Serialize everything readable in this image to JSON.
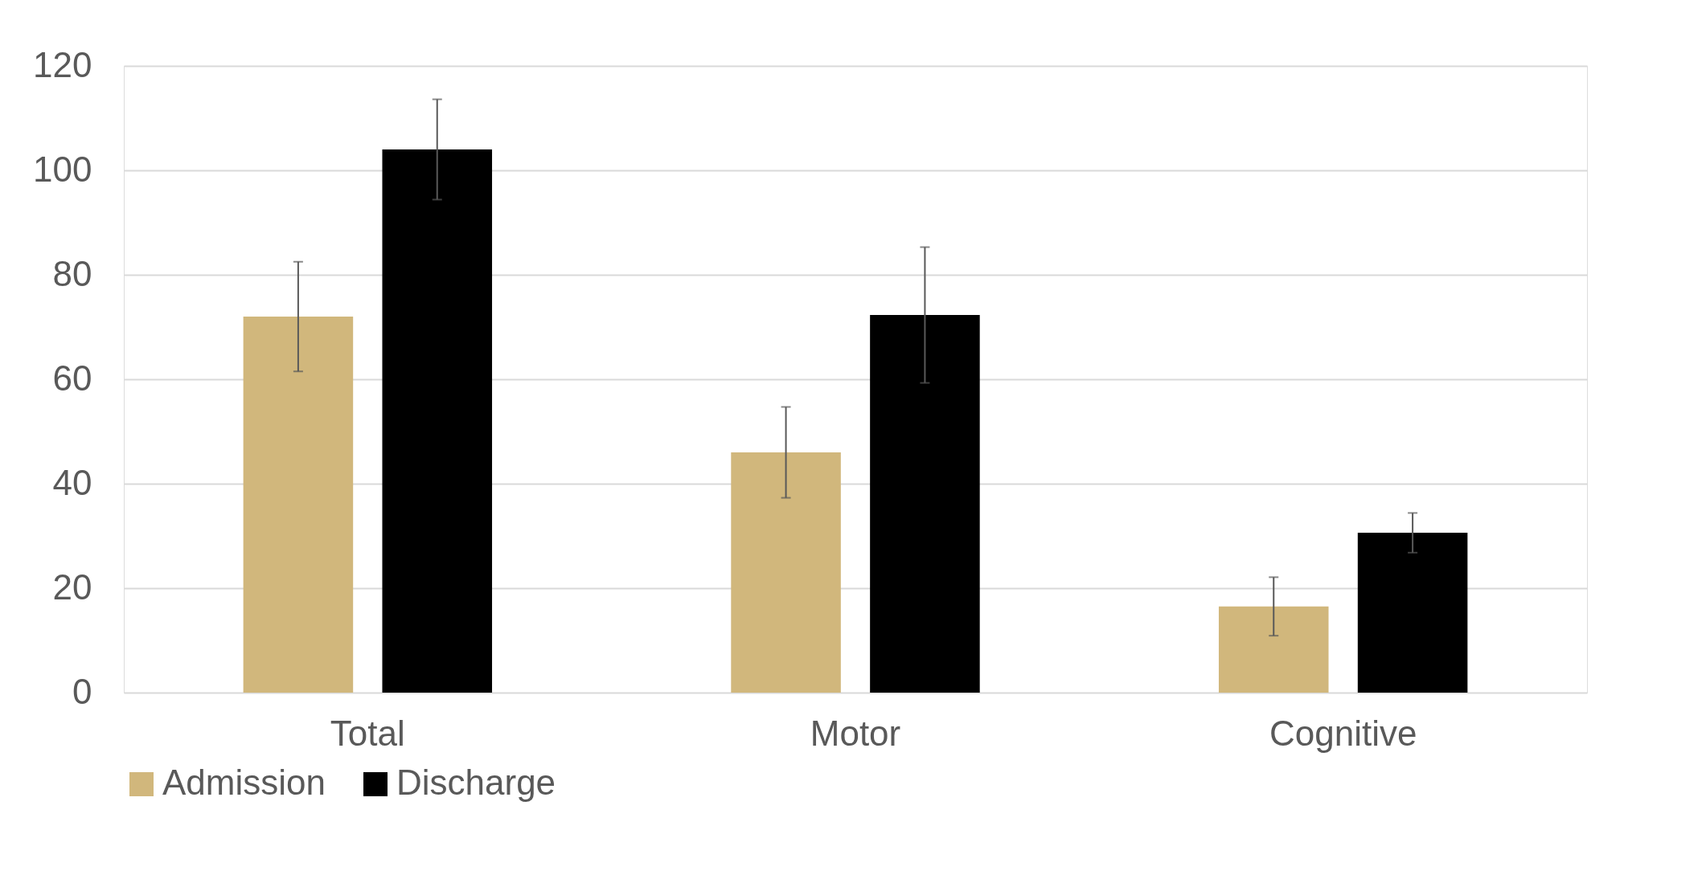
{
  "chart_data": {
    "type": "bar",
    "categories": [
      "Total",
      "Motor",
      "Cognitive"
    ],
    "series": [
      {
        "name": "Admission",
        "color": "#d1b77c",
        "values": [
          72,
          46,
          16.5
        ],
        "errors": [
          10.5,
          8.7,
          5.6
        ]
      },
      {
        "name": "Discharge",
        "color": "#000000",
        "values": [
          104,
          72.3,
          30.6
        ],
        "errors": [
          9.6,
          13,
          3.8
        ]
      }
    ],
    "ylim": [
      0,
      120
    ],
    "yticks": [
      0,
      20,
      40,
      60,
      80,
      100,
      120
    ],
    "grid": "y",
    "legend": "bottom"
  }
}
